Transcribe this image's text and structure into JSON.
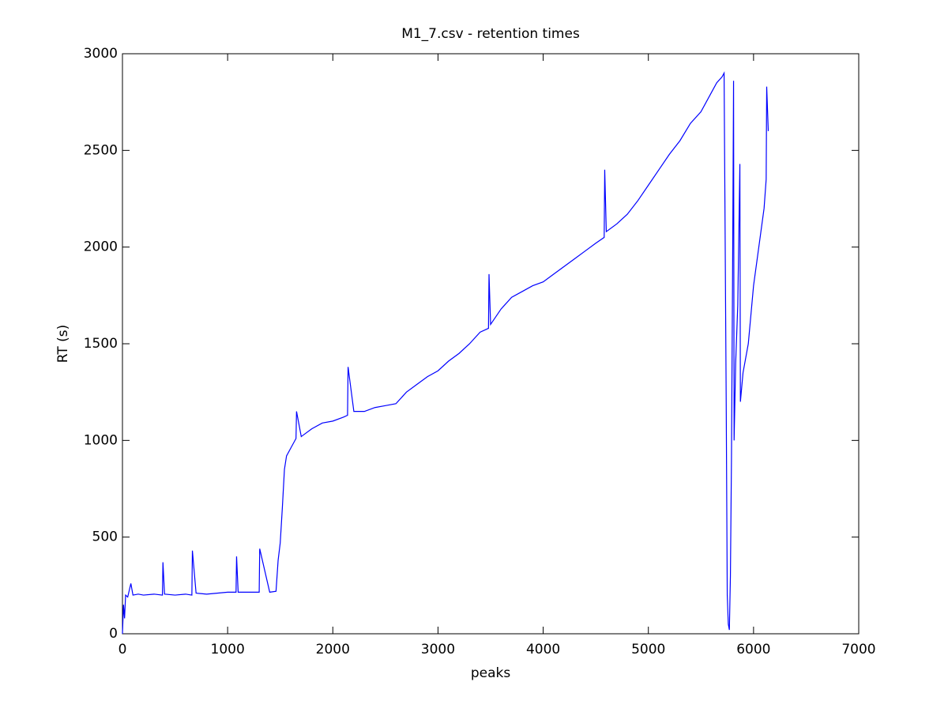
{
  "chart_data": {
    "type": "line",
    "title": "M1_7.csv - retention times",
    "x_label": "peaks",
    "y_label": "RT (s)",
    "color": "#0000ff",
    "x": [
      0,
      10,
      20,
      30,
      50,
      80,
      100,
      150,
      200,
      300,
      380,
      385,
      400,
      500,
      600,
      660,
      665,
      700,
      800,
      900,
      1000,
      1080,
      1085,
      1100,
      1200,
      1300,
      1305,
      1400,
      1460,
      1480,
      1500,
      1520,
      1540,
      1560,
      1600,
      1650,
      1655,
      1700,
      1800,
      1900,
      2000,
      2100,
      2140,
      2145,
      2200,
      2300,
      2400,
      2500,
      2600,
      2700,
      2800,
      2900,
      3000,
      3100,
      3200,
      3300,
      3400,
      3480,
      3485,
      3500,
      3600,
      3700,
      3800,
      3900,
      4000,
      4100,
      4200,
      4300,
      4400,
      4500,
      4580,
      4585,
      4600,
      4700,
      4800,
      4900,
      5000,
      5100,
      5200,
      5300,
      5400,
      5500,
      5600,
      5650,
      5700,
      5720,
      5740,
      5750,
      5760,
      5770,
      5780,
      5790,
      5800,
      5810,
      5815,
      5830,
      5850,
      5870,
      5875,
      5900,
      5950,
      6000,
      6050,
      6100,
      6120,
      6125,
      6140
    ],
    "values": [
      0,
      150,
      80,
      200,
      190,
      260,
      200,
      205,
      200,
      205,
      200,
      370,
      205,
      200,
      205,
      200,
      430,
      210,
      205,
      210,
      215,
      215,
      400,
      215,
      215,
      215,
      440,
      215,
      220,
      380,
      470,
      650,
      850,
      920,
      960,
      1010,
      1150,
      1020,
      1060,
      1090,
      1100,
      1120,
      1130,
      1380,
      1150,
      1150,
      1170,
      1180,
      1190,
      1250,
      1290,
      1330,
      1360,
      1410,
      1450,
      1500,
      1560,
      1580,
      1860,
      1600,
      1680,
      1740,
      1770,
      1800,
      1820,
      1860,
      1900,
      1940,
      1980,
      2020,
      2050,
      2400,
      2080,
      2120,
      2170,
      2240,
      2320,
      2400,
      2480,
      2550,
      2640,
      2700,
      2800,
      2850,
      2880,
      2900,
      1200,
      200,
      50,
      20,
      300,
      900,
      1800,
      2860,
      1000,
      1400,
      1700,
      2430,
      1200,
      1350,
      1500,
      1800,
      2000,
      2200,
      2350,
      2830,
      2600
    ],
    "xlim": [
      0,
      7000
    ],
    "xticks": [
      0,
      1000,
      2000,
      3000,
      4000,
      5000,
      6000,
      7000
    ],
    "ylim": [
      0,
      3000
    ],
    "yticks": [
      0,
      500,
      1000,
      1500,
      2000,
      2500,
      3000
    ],
    "grid": false
  }
}
